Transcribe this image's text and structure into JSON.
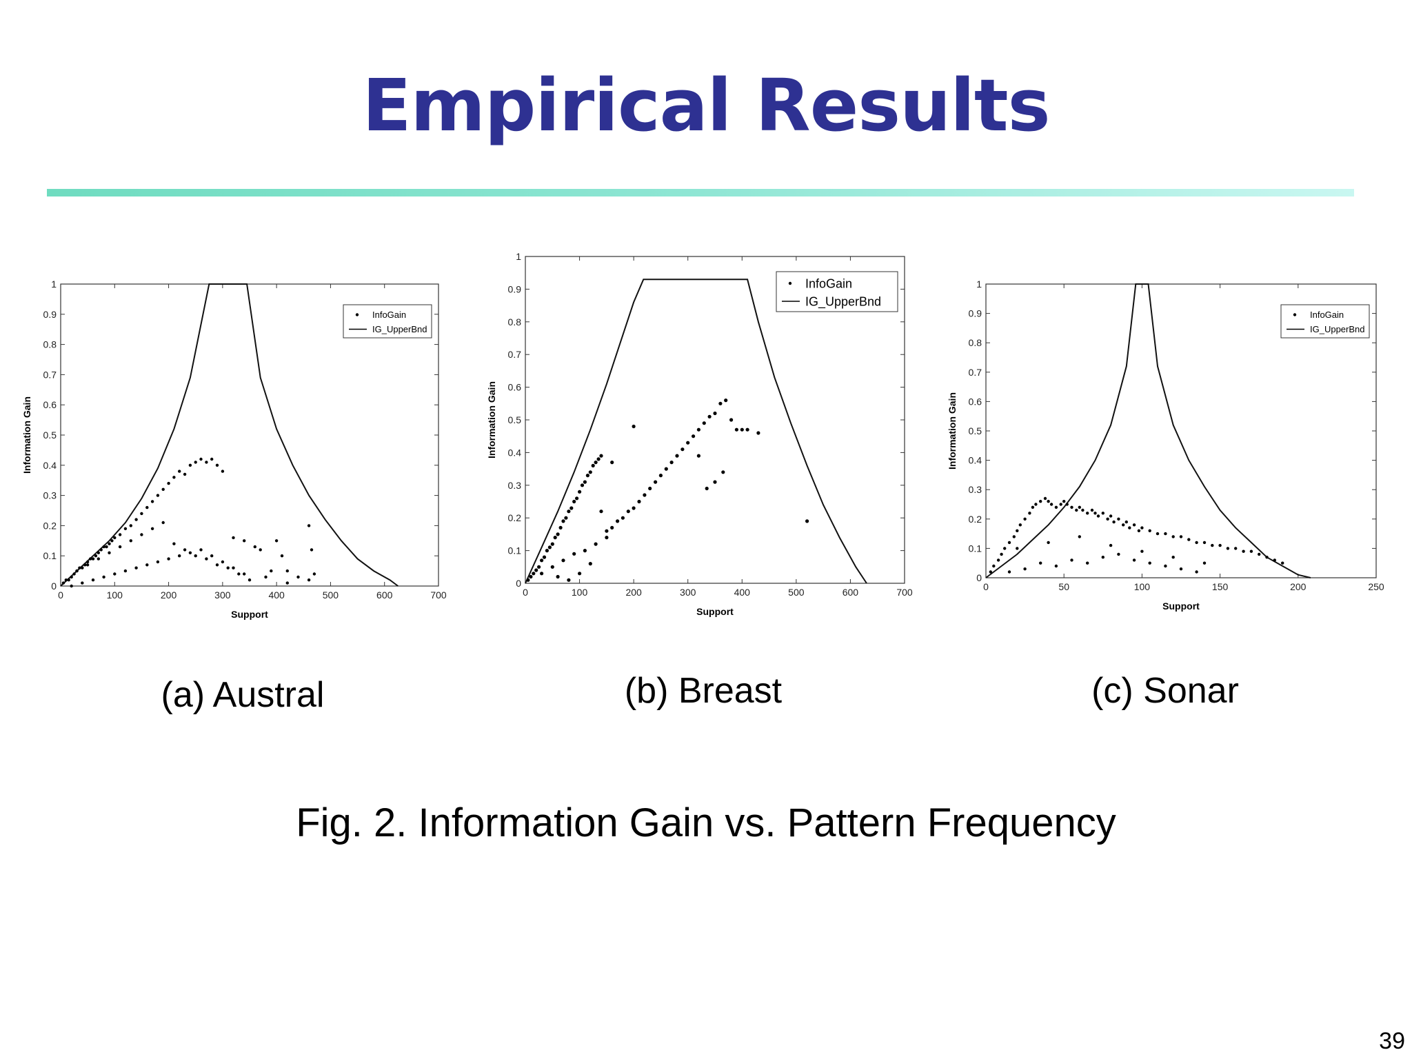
{
  "slide": {
    "title": "Empirical Results",
    "figure_caption": "Fig. 2. Information Gain vs. Pattern Frequency",
    "page_number": "39",
    "title_color": "#2E3192"
  },
  "chart_data": [
    {
      "type": "scatter",
      "caption": "(a) Austral",
      "xlabel": "Support",
      "ylabel": "Information Gain",
      "xlim": [
        0,
        700
      ],
      "ylim": [
        0,
        1
      ],
      "xticks": [
        "0",
        "100",
        "200",
        "300",
        "400",
        "500",
        "600",
        "700"
      ],
      "yticks": [
        "0",
        "0.1",
        "0.2",
        "0.3",
        "0.4",
        "0.5",
        "0.6",
        "0.7",
        "0.8",
        "0.9",
        "1"
      ],
      "legend": [
        "InfoGain",
        "IG_UpperBnd"
      ],
      "legend_position": "top-right",
      "series": [
        {
          "name": "IG_UpperBnd",
          "kind": "line",
          "x": [
            0,
            30,
            60,
            90,
            120,
            150,
            180,
            210,
            240,
            275,
            300,
            345,
            370,
            400,
            430,
            460,
            490,
            520,
            550,
            580,
            610,
            625
          ],
          "y": [
            0,
            0.05,
            0.1,
            0.15,
            0.21,
            0.29,
            0.39,
            0.52,
            0.69,
            1.0,
            1.0,
            1.0,
            0.69,
            0.52,
            0.4,
            0.3,
            0.22,
            0.15,
            0.09,
            0.05,
            0.02,
            0
          ]
        },
        {
          "name": "InfoGain",
          "kind": "points",
          "x": [
            5,
            10,
            15,
            20,
            25,
            30,
            35,
            40,
            45,
            50,
            55,
            60,
            65,
            70,
            75,
            80,
            85,
            90,
            95,
            100,
            110,
            120,
            130,
            140,
            150,
            160,
            170,
            180,
            190,
            200,
            210,
            220,
            230,
            240,
            250,
            260,
            270,
            280,
            290,
            300,
            320,
            340,
            360,
            370,
            390,
            400,
            410,
            420,
            440,
            460,
            465,
            470,
            20,
            40,
            60,
            80,
            100,
            120,
            140,
            160,
            180,
            200,
            220,
            240,
            260,
            280,
            300,
            320,
            340,
            30,
            50,
            70,
            90,
            110,
            130,
            150,
            170,
            190,
            210,
            230,
            250,
            270,
            290,
            310,
            330,
            350,
            380,
            420,
            460
          ],
          "y": [
            0.01,
            0.02,
            0.02,
            0.03,
            0.04,
            0.05,
            0.06,
            0.06,
            0.07,
            0.08,
            0.09,
            0.09,
            0.1,
            0.11,
            0.12,
            0.13,
            0.13,
            0.14,
            0.15,
            0.16,
            0.17,
            0.19,
            0.2,
            0.22,
            0.24,
            0.26,
            0.28,
            0.3,
            0.32,
            0.34,
            0.36,
            0.38,
            0.37,
            0.4,
            0.41,
            0.42,
            0.41,
            0.42,
            0.4,
            0.38,
            0.16,
            0.15,
            0.13,
            0.12,
            0.05,
            0.15,
            0.1,
            0.05,
            0.03,
            0.2,
            0.12,
            0.04,
            0.0,
            0.01,
            0.02,
            0.03,
            0.04,
            0.05,
            0.06,
            0.07,
            0.08,
            0.09,
            0.1,
            0.11,
            0.12,
            0.1,
            0.08,
            0.06,
            0.04,
            0.05,
            0.07,
            0.09,
            0.11,
            0.13,
            0.15,
            0.17,
            0.19,
            0.21,
            0.14,
            0.12,
            0.1,
            0.09,
            0.07,
            0.06,
            0.04,
            0.02,
            0.03,
            0.01,
            0.02
          ]
        }
      ]
    },
    {
      "type": "scatter",
      "caption": "(b) Breast",
      "xlabel": "Support",
      "ylabel": "Information Gain",
      "xlim": [
        0,
        700
      ],
      "ylim": [
        0,
        1
      ],
      "xticks": [
        "0",
        "100",
        "200",
        "300",
        "400",
        "500",
        "600",
        "700"
      ],
      "yticks": [
        "0",
        "0.1",
        "0.2",
        "0.3",
        "0.4",
        "0.5",
        "0.6",
        "0.7",
        "0.8",
        "0.9",
        "1"
      ],
      "legend": [
        "InfoGain",
        "IG_UpperBnd"
      ],
      "legend_position": "top-right",
      "series": [
        {
          "name": "IG_UpperBnd",
          "kind": "line",
          "x": [
            0,
            30,
            60,
            90,
            120,
            150,
            180,
            200,
            218,
            410,
            430,
            460,
            490,
            520,
            550,
            580,
            610,
            630
          ],
          "y": [
            0,
            0.11,
            0.22,
            0.34,
            0.47,
            0.61,
            0.76,
            0.86,
            0.93,
            0.93,
            0.8,
            0.63,
            0.49,
            0.36,
            0.24,
            0.14,
            0.05,
            0
          ]
        },
        {
          "name": "InfoGain",
          "kind": "points",
          "x": [
            5,
            10,
            15,
            20,
            25,
            30,
            35,
            40,
            45,
            50,
            55,
            60,
            65,
            70,
            75,
            80,
            85,
            90,
            95,
            100,
            105,
            110,
            115,
            120,
            125,
            130,
            135,
            140,
            150,
            160,
            170,
            180,
            190,
            200,
            210,
            220,
            230,
            240,
            250,
            260,
            270,
            280,
            290,
            300,
            310,
            320,
            330,
            340,
            350,
            360,
            370,
            380,
            390,
            400,
            410,
            430,
            520,
            30,
            50,
            70,
            90,
            110,
            130,
            150,
            60,
            80,
            100,
            120,
            140,
            160,
            200,
            350,
            365,
            335,
            320
          ],
          "y": [
            0.01,
            0.02,
            0.03,
            0.04,
            0.05,
            0.07,
            0.08,
            0.1,
            0.11,
            0.12,
            0.14,
            0.15,
            0.17,
            0.19,
            0.2,
            0.22,
            0.23,
            0.25,
            0.26,
            0.28,
            0.3,
            0.31,
            0.33,
            0.34,
            0.36,
            0.37,
            0.38,
            0.39,
            0.16,
            0.17,
            0.19,
            0.2,
            0.22,
            0.23,
            0.25,
            0.27,
            0.29,
            0.31,
            0.33,
            0.35,
            0.37,
            0.39,
            0.41,
            0.43,
            0.45,
            0.47,
            0.49,
            0.51,
            0.52,
            0.55,
            0.56,
            0.5,
            0.47,
            0.47,
            0.47,
            0.46,
            0.19,
            0.03,
            0.05,
            0.07,
            0.09,
            0.1,
            0.12,
            0.14,
            0.02,
            0.01,
            0.03,
            0.06,
            0.22,
            0.37,
            0.48,
            0.31,
            0.34,
            0.29,
            0.39
          ]
        }
      ]
    },
    {
      "type": "scatter",
      "caption": "(c) Sonar",
      "xlabel": "Support",
      "ylabel": "Information Gain",
      "xlim": [
        0,
        250
      ],
      "ylim": [
        0,
        1
      ],
      "xticks": [
        "0",
        "50",
        "100",
        "150",
        "200",
        "250"
      ],
      "yticks": [
        "0",
        "0.1",
        "0.2",
        "0.3",
        "0.4",
        "0.5",
        "0.6",
        "0.7",
        "0.8",
        "0.9",
        "1"
      ],
      "legend": [
        "InfoGain",
        "IG_UpperBnd"
      ],
      "legend_position": "top-right",
      "series": [
        {
          "name": "IG_UpperBnd",
          "kind": "line",
          "x": [
            0,
            10,
            20,
            30,
            40,
            50,
            60,
            70,
            80,
            90,
            96,
            104,
            110,
            120,
            130,
            140,
            150,
            160,
            170,
            180,
            190,
            200,
            208
          ],
          "y": [
            0,
            0.04,
            0.08,
            0.13,
            0.18,
            0.24,
            0.31,
            0.4,
            0.52,
            0.72,
            1.0,
            1.0,
            0.72,
            0.52,
            0.4,
            0.31,
            0.23,
            0.17,
            0.12,
            0.07,
            0.04,
            0.01,
            0
          ]
        },
        {
          "name": "InfoGain",
          "kind": "points",
          "x": [
            3,
            5,
            8,
            10,
            12,
            15,
            18,
            20,
            22,
            25,
            28,
            30,
            32,
            35,
            38,
            40,
            42,
            45,
            48,
            50,
            52,
            55,
            58,
            60,
            62,
            65,
            68,
            70,
            72,
            75,
            78,
            80,
            82,
            85,
            88,
            90,
            92,
            95,
            98,
            100,
            105,
            110,
            115,
            120,
            125,
            130,
            135,
            140,
            145,
            150,
            155,
            160,
            165,
            170,
            175,
            180,
            185,
            190,
            15,
            25,
            35,
            45,
            55,
            65,
            75,
            85,
            95,
            105,
            115,
            125,
            135,
            20,
            40,
            60,
            80,
            100,
            120,
            140
          ],
          "y": [
            0.02,
            0.04,
            0.06,
            0.08,
            0.1,
            0.12,
            0.14,
            0.16,
            0.18,
            0.2,
            0.22,
            0.24,
            0.25,
            0.26,
            0.27,
            0.26,
            0.25,
            0.24,
            0.25,
            0.26,
            0.25,
            0.24,
            0.23,
            0.24,
            0.23,
            0.22,
            0.23,
            0.22,
            0.21,
            0.22,
            0.2,
            0.21,
            0.19,
            0.2,
            0.18,
            0.19,
            0.17,
            0.18,
            0.16,
            0.17,
            0.16,
            0.15,
            0.15,
            0.14,
            0.14,
            0.13,
            0.12,
            0.12,
            0.11,
            0.11,
            0.1,
            0.1,
            0.09,
            0.09,
            0.08,
            0.07,
            0.06,
            0.05,
            0.02,
            0.03,
            0.05,
            0.04,
            0.06,
            0.05,
            0.07,
            0.08,
            0.06,
            0.05,
            0.04,
            0.03,
            0.02,
            0.1,
            0.12,
            0.14,
            0.11,
            0.09,
            0.07,
            0.05
          ]
        }
      ]
    }
  ]
}
